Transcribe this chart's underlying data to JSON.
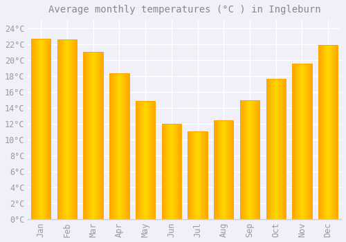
{
  "title": "Average monthly temperatures (°C ) in Ingleburn",
  "months": [
    "Jan",
    "Feb",
    "Mar",
    "Apr",
    "May",
    "Jun",
    "Jul",
    "Aug",
    "Sep",
    "Oct",
    "Nov",
    "Dec"
  ],
  "values": [
    22.7,
    22.6,
    21.0,
    18.3,
    14.8,
    12.0,
    11.0,
    12.4,
    14.9,
    17.6,
    19.5,
    21.9
  ],
  "bar_color_center": "#FFD700",
  "bar_color_edge": "#FFA500",
  "background_color": "#F0F0F8",
  "plot_bg_color": "#F0F0F8",
  "grid_color": "#FFFFFF",
  "text_color": "#999999",
  "title_color": "#888888",
  "axis_color": "#CCCCCC",
  "ylim": [
    0,
    25
  ],
  "yticks": [
    0,
    2,
    4,
    6,
    8,
    10,
    12,
    14,
    16,
    18,
    20,
    22,
    24
  ],
  "title_fontsize": 10,
  "tick_fontsize": 8.5,
  "bar_width": 0.75
}
